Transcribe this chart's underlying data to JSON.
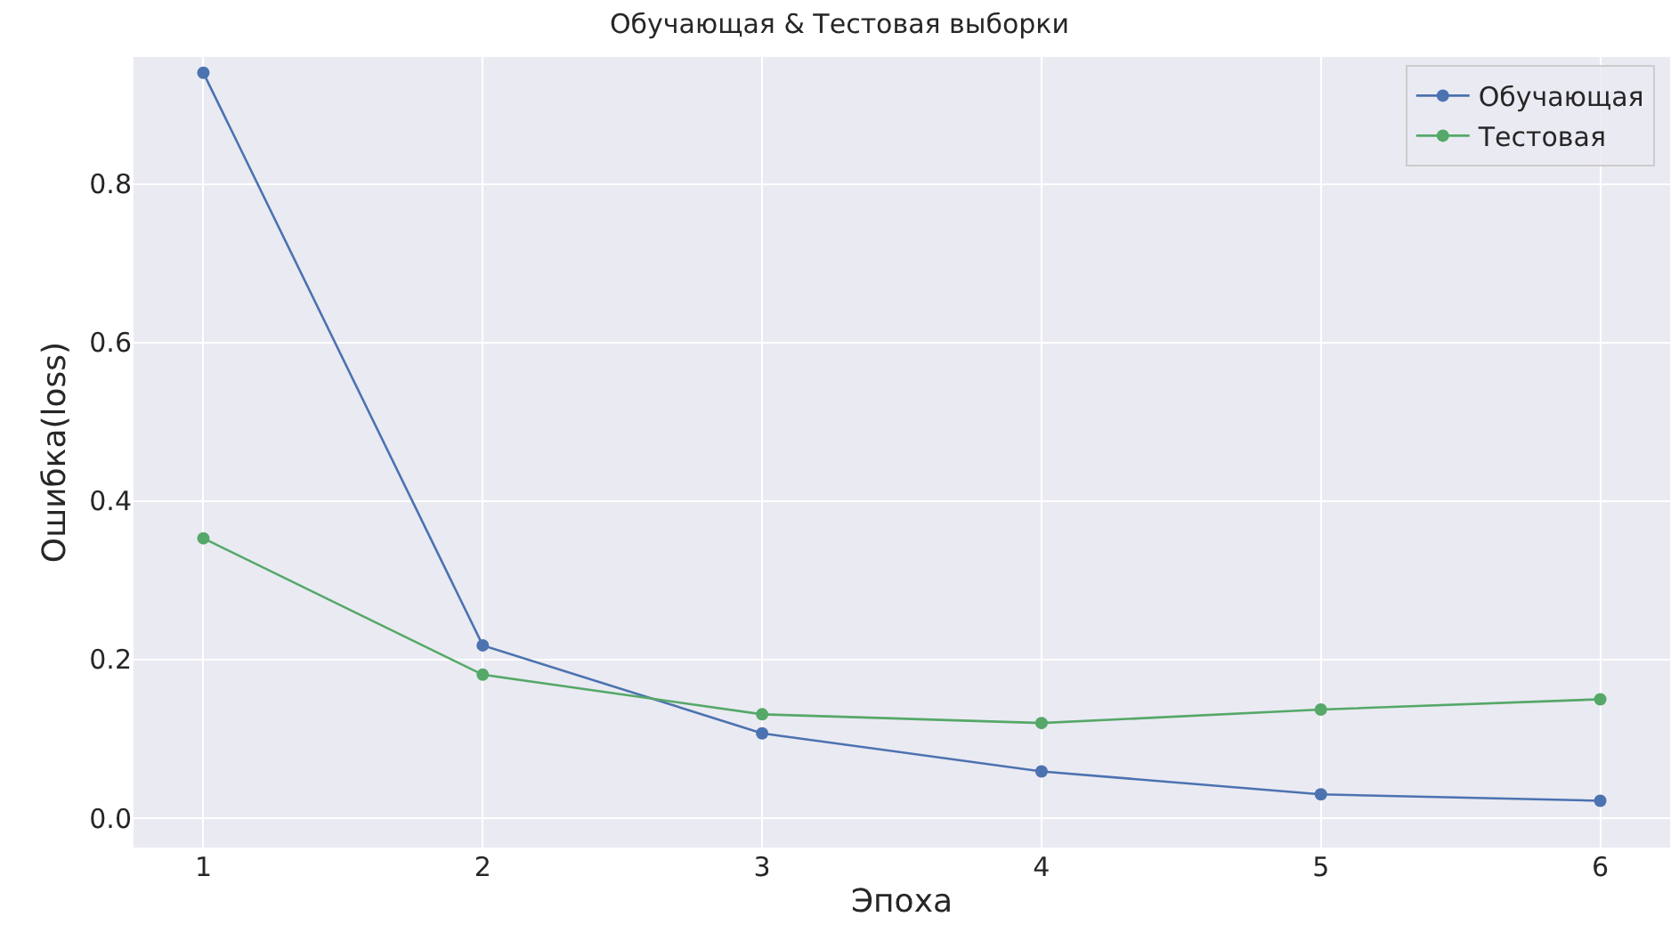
{
  "chart_data": {
    "type": "line",
    "title": "Обучающая & Тестовая выборки",
    "xlabel": "Эпоха",
    "ylabel": "Ошибка(loss)",
    "x": [
      1,
      2,
      3,
      4,
      5,
      6
    ],
    "series": [
      {
        "name": "Обучающая",
        "color": "#4c72b0",
        "values": [
          0.94,
          0.218,
          0.107,
          0.059,
          0.03,
          0.022
        ]
      },
      {
        "name": "Тестовая",
        "color": "#55a868",
        "values": [
          0.353,
          0.181,
          0.131,
          0.12,
          0.137,
          0.15
        ]
      }
    ],
    "xlim": [
      0.75,
      6.25
    ],
    "xticks": [
      1,
      2,
      3,
      4,
      5,
      6
    ],
    "ylim": [
      -0.037,
      0.96
    ],
    "yticks": [
      {
        "value": 0,
        "label": "0.0"
      },
      0.2,
      0.4,
      0.6,
      0.8
    ],
    "grid": true,
    "legend": "top right",
    "marker": "circle",
    "line_style": "solid"
  }
}
